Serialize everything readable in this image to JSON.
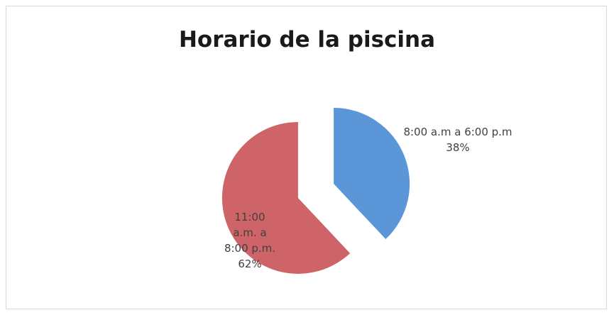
{
  "chart_data": {
    "type": "pie",
    "title": "Horario de la piscina",
    "categories": [
      "8:00 a.m a 6:00 p.m",
      "11:00 a.m. a 8:00 p.m."
    ],
    "values": [
      38,
      62
    ],
    "value_labels": [
      "38%",
      "62%"
    ],
    "colors": [
      "#5b97d8",
      "#cf6468"
    ],
    "exploded": true
  }
}
